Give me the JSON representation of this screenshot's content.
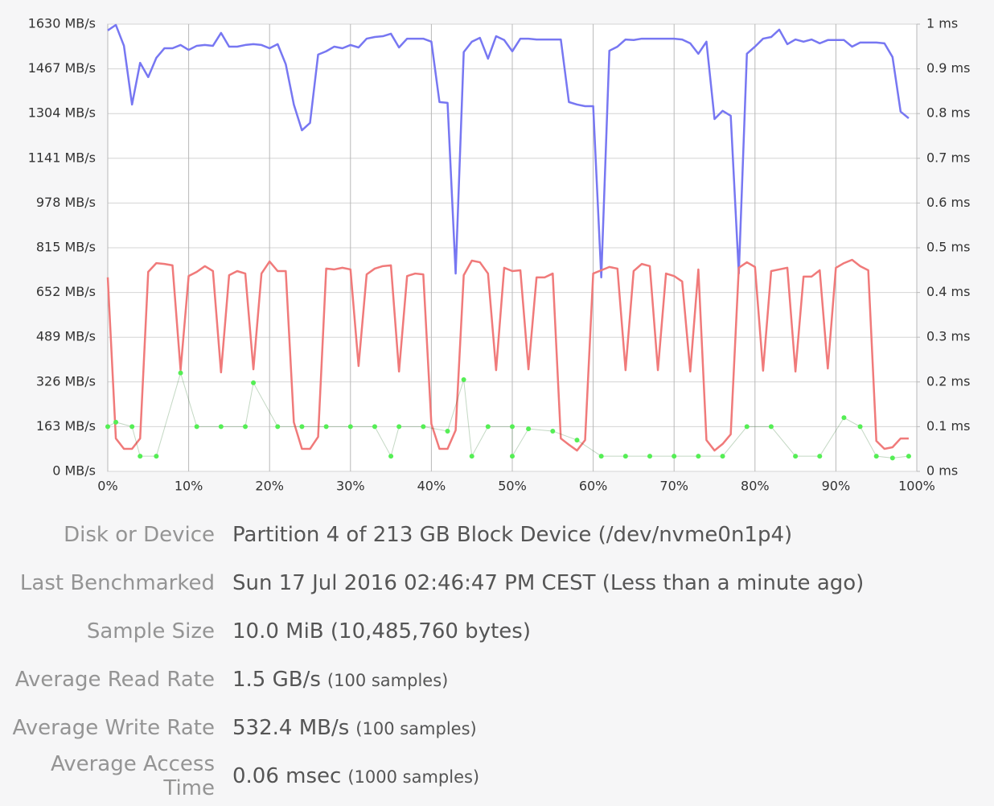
{
  "chart_data": {
    "type": "line",
    "x": [
      0,
      1,
      2,
      3,
      4,
      5,
      6,
      7,
      8,
      9,
      10,
      11,
      12,
      13,
      14,
      15,
      16,
      17,
      18,
      19,
      20,
      21,
      22,
      23,
      24,
      25,
      26,
      27,
      28,
      29,
      30,
      31,
      32,
      33,
      34,
      35,
      36,
      37,
      38,
      39,
      40,
      41,
      42,
      43,
      44,
      45,
      46,
      47,
      48,
      49,
      50,
      51,
      52,
      53,
      54,
      55,
      56,
      57,
      58,
      59,
      60,
      61,
      62,
      63,
      64,
      65,
      66,
      67,
      68,
      69,
      70,
      71,
      72,
      73,
      74,
      75,
      76,
      77,
      78,
      79,
      80,
      81,
      82,
      83,
      84,
      85,
      86,
      87,
      88,
      89,
      90,
      91,
      92,
      93,
      94,
      95,
      96,
      97,
      98,
      99
    ],
    "xlim": [
      0,
      100
    ],
    "xticks": [
      {
        "value": 0,
        "label": "0%"
      },
      {
        "value": 10,
        "label": "10%"
      },
      {
        "value": 20,
        "label": "20%"
      },
      {
        "value": 30,
        "label": "30%"
      },
      {
        "value": 40,
        "label": "40%"
      },
      {
        "value": 50,
        "label": "50%"
      },
      {
        "value": 60,
        "label": "60%"
      },
      {
        "value": 70,
        "label": "70%"
      },
      {
        "value": 80,
        "label": "80%"
      },
      {
        "value": 90,
        "label": "90%"
      },
      {
        "value": 100,
        "label": "100%"
      }
    ],
    "ylim": [
      0,
      1630
    ],
    "yticks": [
      {
        "value": 0,
        "label": "0 MB/s"
      },
      {
        "value": 163,
        "label": "163 MB/s"
      },
      {
        "value": 326,
        "label": "326 MB/s"
      },
      {
        "value": 489,
        "label": "489 MB/s"
      },
      {
        "value": 652,
        "label": "652 MB/s"
      },
      {
        "value": 815,
        "label": "815 MB/s"
      },
      {
        "value": 978,
        "label": "978 MB/s"
      },
      {
        "value": 1141,
        "label": "1141 MB/s"
      },
      {
        "value": 1304,
        "label": "1304 MB/s"
      },
      {
        "value": 1467,
        "label": "1467 MB/s"
      },
      {
        "value": 1630,
        "label": "1630 MB/s"
      }
    ],
    "y2lim": [
      0,
      1
    ],
    "y2ticks": [
      {
        "value": 0,
        "label": "0 ms"
      },
      {
        "value": 0.1,
        "label": "0.1 ms"
      },
      {
        "value": 0.2,
        "label": "0.2 ms"
      },
      {
        "value": 0.3,
        "label": "0.3 ms"
      },
      {
        "value": 0.4,
        "label": "0.4 ms"
      },
      {
        "value": 0.5,
        "label": "0.5 ms"
      },
      {
        "value": 0.6,
        "label": "0.6 ms"
      },
      {
        "value": 0.7,
        "label": "0.7 ms"
      },
      {
        "value": 0.8,
        "label": "0.8 ms"
      },
      {
        "value": 0.9,
        "label": "0.9 ms"
      },
      {
        "value": 1,
        "label": "1 ms"
      }
    ],
    "grid": true,
    "series": [
      {
        "color": "#7777f2",
        "values": [
          1607,
          1627,
          1551,
          1337,
          1489,
          1437,
          1507,
          1542,
          1542,
          1554,
          1536,
          1551,
          1554,
          1551,
          1598,
          1548,
          1548,
          1554,
          1557,
          1554,
          1542,
          1557,
          1484,
          1337,
          1243,
          1270,
          1519,
          1531,
          1548,
          1542,
          1554,
          1545,
          1577,
          1583,
          1586,
          1595,
          1545,
          1577,
          1577,
          1577,
          1566,
          1346,
          1343,
          721,
          1528,
          1566,
          1580,
          1504,
          1586,
          1572,
          1531,
          1577,
          1577,
          1574,
          1574,
          1574,
          1574,
          1346,
          1337,
          1331,
          1331,
          707,
          1533,
          1548,
          1574,
          1572,
          1577,
          1577,
          1577,
          1577,
          1577,
          1574,
          1560,
          1522,
          1566,
          1284,
          1314,
          1296,
          721,
          1522,
          1548,
          1577,
          1583,
          1610,
          1557,
          1574,
          1566,
          1574,
          1560,
          1572,
          1572,
          1572,
          1548,
          1563,
          1563,
          1563,
          1560,
          1510,
          1311,
          1287
        ]
      },
      {
        "color": "#f07a7a",
        "values": [
          707,
          120,
          82,
          82,
          120,
          727,
          759,
          756,
          751,
          369,
          712,
          727,
          748,
          730,
          361,
          715,
          730,
          721,
          372,
          721,
          765,
          730,
          730,
          179,
          82,
          82,
          126,
          739,
          736,
          742,
          736,
          384,
          718,
          739,
          748,
          751,
          364,
          712,
          721,
          718,
          173,
          82,
          82,
          150,
          715,
          768,
          762,
          721,
          369,
          742,
          730,
          733,
          372,
          707,
          707,
          721,
          120,
          97,
          76,
          114,
          721,
          733,
          745,
          739,
          369,
          730,
          756,
          748,
          369,
          721,
          712,
          692,
          364,
          736,
          114,
          76,
          100,
          135,
          742,
          762,
          745,
          367,
          730,
          736,
          742,
          364,
          710,
          710,
          733,
          375,
          742,
          759,
          771,
          748,
          733,
          111,
          82,
          88,
          120,
          120
        ]
      },
      {
        "color": "#55ee55",
        "axis": "y2",
        "x": [
          0,
          1,
          3,
          4,
          6,
          9,
          11,
          14,
          17,
          18,
          21,
          24,
          27,
          30,
          33,
          35,
          36,
          39,
          42,
          44,
          45,
          47,
          50,
          50,
          52,
          55,
          58,
          61,
          64,
          67,
          70,
          73,
          76,
          79,
          82,
          85,
          88,
          91,
          93,
          95,
          97,
          99
        ],
        "values": [
          0.1,
          0.11,
          0.1,
          0.034,
          0.034,
          0.22,
          0.1,
          0.1,
          0.1,
          0.198,
          0.1,
          0.1,
          0.1,
          0.1,
          0.1,
          0.034,
          0.1,
          0.1,
          0.09,
          0.205,
          0.034,
          0.1,
          0.1,
          0.034,
          0.095,
          0.09,
          0.07,
          0.034,
          0.034,
          0.034,
          0.034,
          0.034,
          0.034,
          0.1,
          0.1,
          0.034,
          0.034,
          0.12,
          0.1,
          0.034,
          0.03,
          0.034
        ]
      }
    ]
  },
  "info": {
    "rows": [
      {
        "label": "Disk or Device",
        "value": "Partition 4 of 213 GB Block Device (/dev/nvme0n1p4)"
      },
      {
        "label": "Last Benchmarked",
        "value": "Sun 17 Jul 2016 02:46:47 PM CEST (Less than a minute ago)"
      },
      {
        "label": "Sample Size",
        "value": "10.0 MiB (10,485,760 bytes)"
      },
      {
        "label": "Average Read Rate",
        "value": "1.5 GB/s",
        "note": "(100 samples)"
      },
      {
        "label": "Average Write Rate",
        "value": "532.4 MB/s",
        "note": "(100 samples)"
      },
      {
        "label": "Average Access Time",
        "value": "0.06 msec",
        "note": "(1000 samples)"
      }
    ]
  }
}
